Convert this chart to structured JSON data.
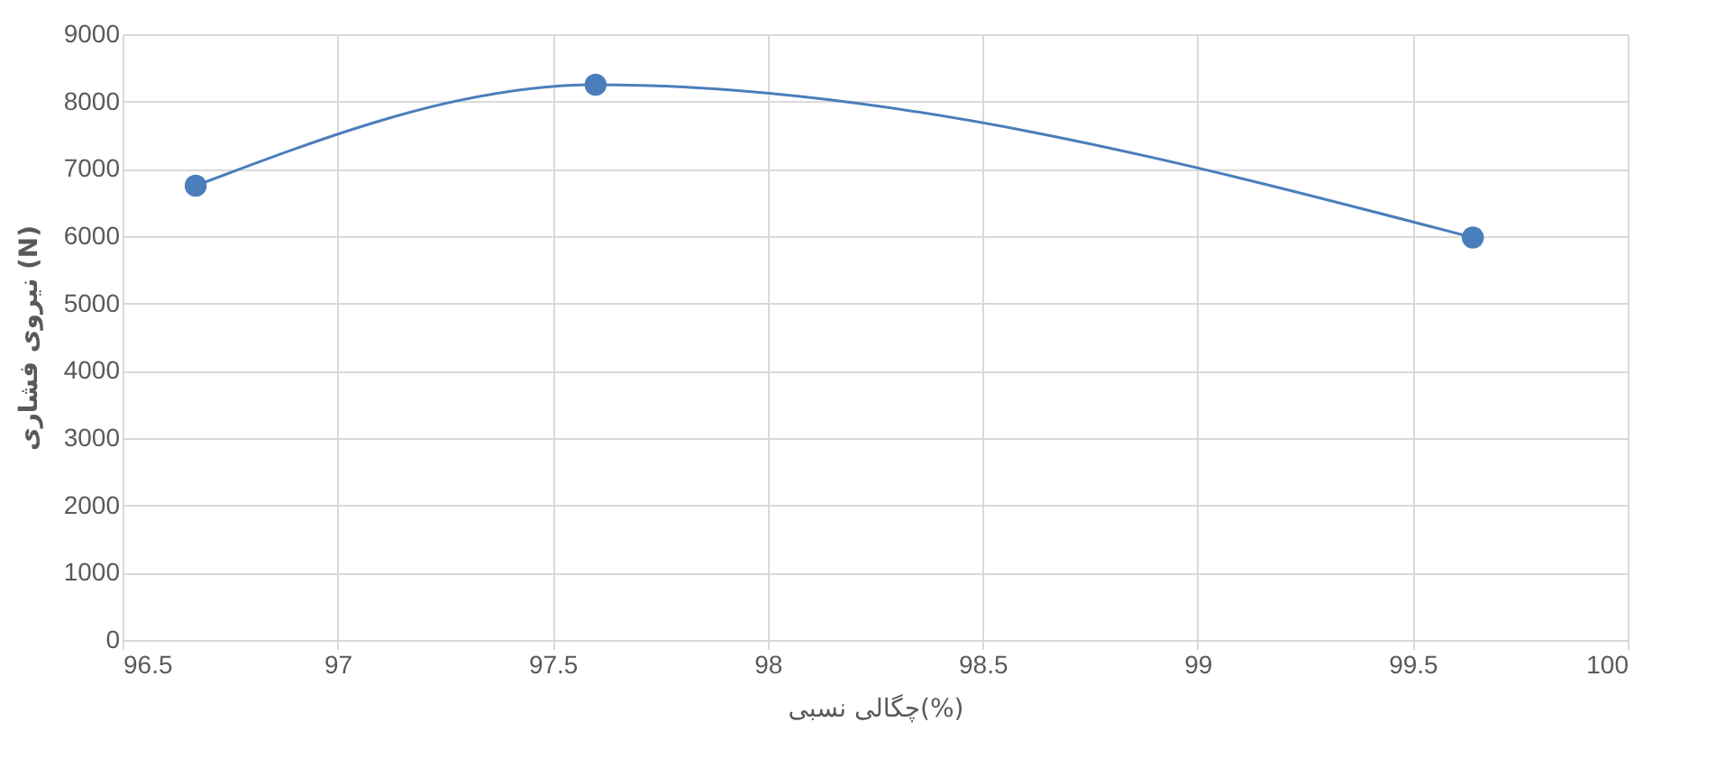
{
  "chart_data": {
    "type": "line",
    "xlabel": "چگالی نسبی(%)",
    "ylabel": "نیروی فشاری (N)",
    "x": [
      96.67,
      97.6,
      99.64
    ],
    "series": [
      {
        "color": "#4a7ebb",
        "values": [
          6750,
          8250,
          5980
        ]
      }
    ],
    "xlim": [
      96.5,
      100
    ],
    "xticks": [
      96.5,
      97,
      97.5,
      98,
      98.5,
      99,
      99.5,
      100
    ],
    "ylim": [
      0,
      9000
    ],
    "yticks": [
      0,
      1000,
      2000,
      3000,
      4000,
      5000,
      6000,
      7000,
      8000,
      9000
    ],
    "grid": true,
    "marker": "circle",
    "line_style": "solid"
  }
}
